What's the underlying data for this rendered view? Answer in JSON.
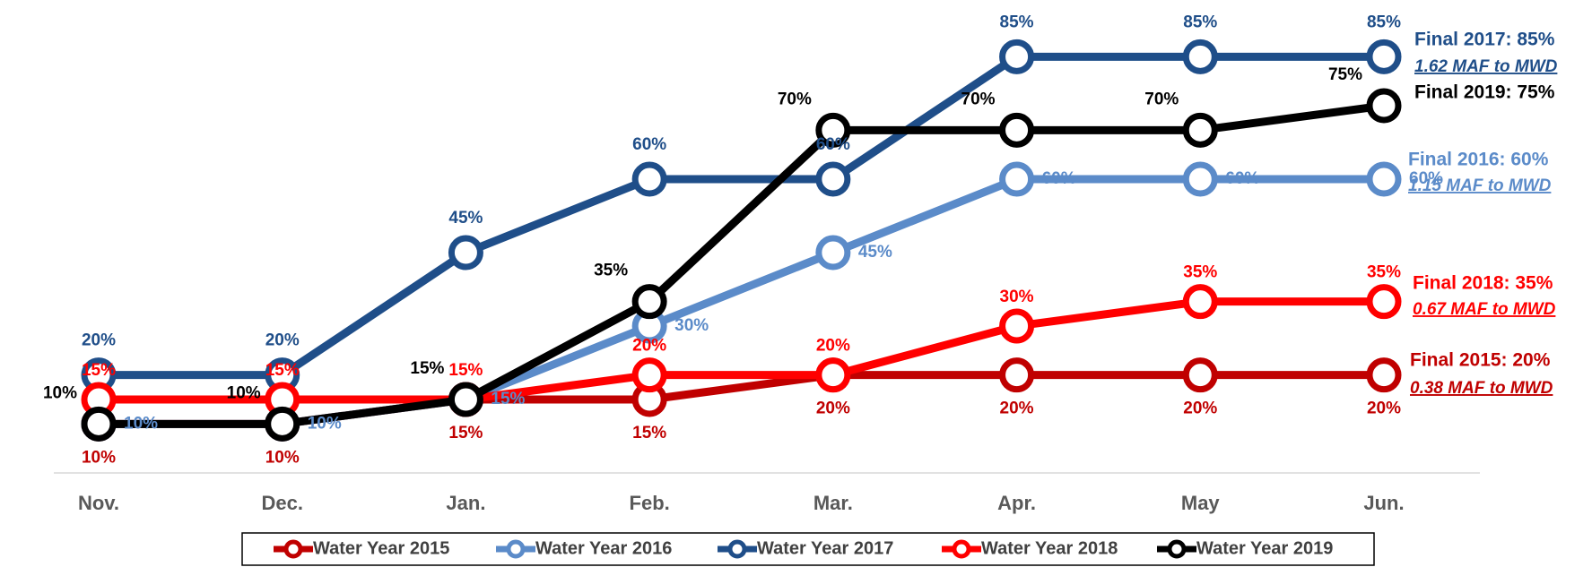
{
  "chart_data": {
    "type": "line",
    "categories": [
      "Nov.",
      "Dec.",
      "Jan.",
      "Feb.",
      "Mar.",
      "Apr.",
      "May",
      "Jun."
    ],
    "ylim": [
      0,
      90
    ],
    "series": [
      {
        "name": "Water Year 2015",
        "color": "#c00000",
        "values": [
          10,
          10,
          15,
          15,
          20,
          20,
          20,
          20
        ],
        "value_labels": [
          "10%",
          "10%",
          "15%",
          "15%",
          "20%",
          "20%",
          "20%",
          "20%"
        ]
      },
      {
        "name": "Water Year 2016",
        "color": "#5b8bc9",
        "values": [
          10,
          10,
          15,
          30,
          45,
          60,
          60,
          60
        ],
        "value_labels": [
          "10%",
          "10%",
          "15%",
          "30%",
          "45%",
          "60%",
          "60%",
          "60%"
        ]
      },
      {
        "name": "Water Year 2017",
        "color": "#1f4e89",
        "values": [
          20,
          20,
          45,
          60,
          60,
          85,
          85,
          85
        ],
        "value_labels": [
          "20%",
          "20%",
          "45%",
          "60%",
          "60%",
          "85%",
          "85%",
          "85%"
        ]
      },
      {
        "name": "Water Year 2018",
        "color": "#ff0000",
        "values": [
          15,
          15,
          15,
          20,
          20,
          30,
          35,
          35
        ],
        "value_labels": [
          "15%",
          "15%",
          "15%",
          "20%",
          "20%",
          "30%",
          "35%",
          "35%"
        ]
      },
      {
        "name": "Water Year 2019",
        "color": "#000000",
        "values": [
          10,
          10,
          15,
          35,
          70,
          70,
          70,
          75
        ],
        "value_labels": [
          "10%",
          "10%",
          "15%",
          "35%",
          "70%",
          "70%",
          "70%",
          "75%"
        ]
      }
    ],
    "annotations": [
      {
        "text": "Final  2017:  85%",
        "color": "#1f4e89"
      },
      {
        "text": "1.62 MAF to MWD",
        "color": "#1f4e89"
      },
      {
        "text": "Final 2019: 75%",
        "color": "#000000"
      },
      {
        "text": "Final  2016:  60%",
        "color": "#5b8bc9"
      },
      {
        "text": "1.15 MAF to MWD",
        "color": "#5b8bc9"
      },
      {
        "text": "Final 2018:  35%",
        "color": "#ff0000"
      },
      {
        "text": "0.67 MAF to MWD",
        "color": "#ff0000"
      },
      {
        "text": "Final 2015:  20%",
        "color": "#c00000"
      },
      {
        "text": "0.38 MAF to MWD",
        "color": "#c00000"
      }
    ]
  }
}
